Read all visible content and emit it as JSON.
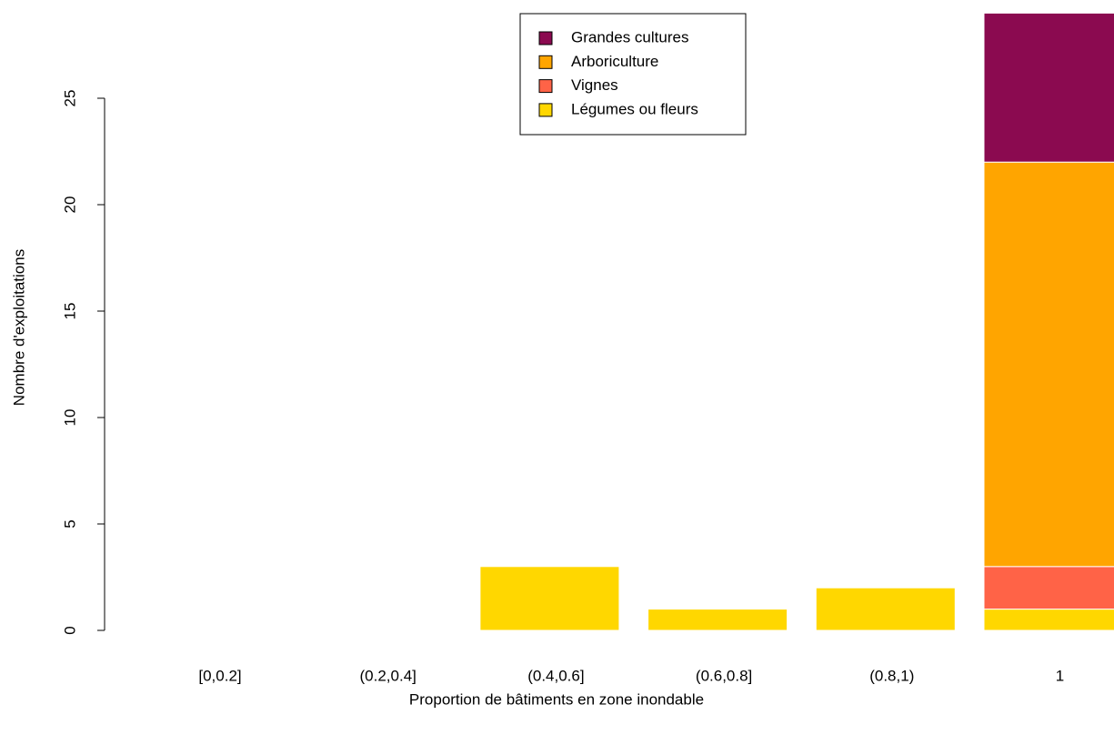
{
  "chart_data": {
    "type": "stacked-bar",
    "x_label": "Proportion de bâtiments en zone inondable",
    "y_label": "Nombre d'exploitations",
    "categories": [
      "[0,0.2]",
      "(0.2,0.4]",
      "(0.4,0.6]",
      "(0.6,0.8]",
      "(0.8,1)",
      "1"
    ],
    "series": [
      {
        "name": "Grandes cultures",
        "color": "#8b0a50",
        "values": [
          0,
          0,
          0,
          0,
          0,
          7
        ]
      },
      {
        "name": "Arboriculture",
        "color": "#ffa500",
        "values": [
          0,
          0,
          0,
          0,
          0,
          19
        ]
      },
      {
        "name": "Vignes",
        "color": "#ff6347",
        "values": [
          0,
          0,
          0,
          0,
          0,
          2
        ]
      },
      {
        "name": "Légumes ou fleurs",
        "color": "#ffd700",
        "values": [
          0,
          0,
          3,
          1,
          2,
          1
        ]
      }
    ],
    "ylim": [
      0,
      29
    ],
    "yticks": [
      0,
      5,
      10,
      15,
      20,
      25
    ],
    "legend": "top"
  }
}
